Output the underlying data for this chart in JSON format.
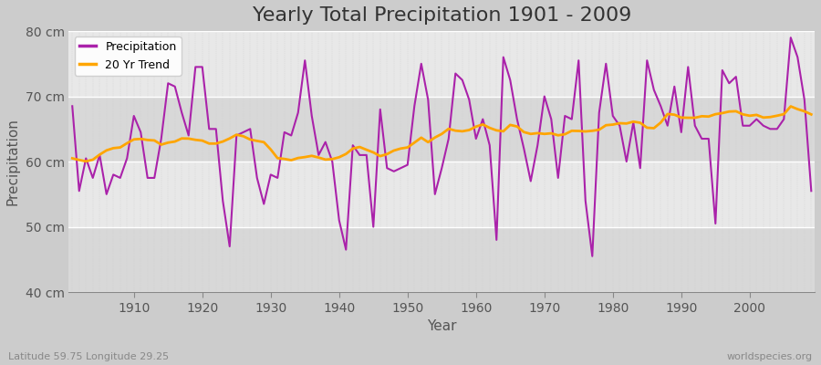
{
  "title": "Yearly Total Precipitation 1901 - 2009",
  "xlabel": "Year",
  "ylabel": "Precipitation",
  "subtitle": "Latitude 59.75 Longitude 29.25",
  "watermark": "worldspecies.org",
  "years": [
    1901,
    1902,
    1903,
    1904,
    1905,
    1906,
    1907,
    1908,
    1909,
    1910,
    1911,
    1912,
    1913,
    1914,
    1915,
    1916,
    1917,
    1918,
    1919,
    1920,
    1921,
    1922,
    1923,
    1924,
    1925,
    1926,
    1927,
    1928,
    1929,
    1930,
    1931,
    1932,
    1933,
    1934,
    1935,
    1936,
    1937,
    1938,
    1939,
    1940,
    1941,
    1942,
    1943,
    1944,
    1945,
    1946,
    1947,
    1948,
    1949,
    1950,
    1951,
    1952,
    1953,
    1954,
    1955,
    1956,
    1957,
    1958,
    1959,
    1960,
    1961,
    1962,
    1963,
    1964,
    1965,
    1966,
    1967,
    1968,
    1969,
    1970,
    1971,
    1972,
    1973,
    1974,
    1975,
    1976,
    1977,
    1978,
    1979,
    1980,
    1981,
    1982,
    1983,
    1984,
    1985,
    1986,
    1987,
    1988,
    1989,
    1990,
    1991,
    1992,
    1993,
    1994,
    1995,
    1996,
    1997,
    1998,
    1999,
    2000,
    2001,
    2002,
    2003,
    2004,
    2005,
    2006,
    2007,
    2008,
    2009
  ],
  "precipitation": [
    68.5,
    55.5,
    60.5,
    57.5,
    61.0,
    55.0,
    58.0,
    57.5,
    60.5,
    67.0,
    64.5,
    57.5,
    57.5,
    63.5,
    72.0,
    71.5,
    67.5,
    64.0,
    74.5,
    74.5,
    65.0,
    65.0,
    54.0,
    47.0,
    64.0,
    64.5,
    65.0,
    57.5,
    53.5,
    58.0,
    57.5,
    64.5,
    64.0,
    67.5,
    75.5,
    67.0,
    61.0,
    63.0,
    60.0,
    51.0,
    46.5,
    62.5,
    61.0,
    61.0,
    50.0,
    68.0,
    59.0,
    58.5,
    59.0,
    59.5,
    68.5,
    75.0,
    69.5,
    55.0,
    59.0,
    63.5,
    73.5,
    72.5,
    69.5,
    63.5,
    66.5,
    62.5,
    48.0,
    76.0,
    72.5,
    66.5,
    62.0,
    57.0,
    62.5,
    70.0,
    66.5,
    57.5,
    67.0,
    66.5,
    75.5,
    54.0,
    45.5,
    67.5,
    75.0,
    67.0,
    65.5,
    60.0,
    66.0,
    59.0,
    75.5,
    71.0,
    68.5,
    65.5,
    71.5,
    64.5,
    74.5,
    65.5,
    63.5,
    63.5,
    50.5,
    74.0,
    72.0,
    73.0,
    65.5,
    65.5,
    66.5,
    65.5,
    65.0,
    65.0,
    66.5,
    79.0,
    76.0,
    69.5,
    55.5
  ],
  "precip_color": "#AA22AA",
  "trend_color": "#FFA500",
  "fig_background": "#CCCCCC",
  "plot_background_light": "#E8E8E8",
  "plot_background_dark": "#D8D8D8",
  "grid_color_h": "#FFFFFF",
  "grid_color_v": "#BBBBBB",
  "ylim": [
    40,
    80
  ],
  "yticks": [
    40,
    50,
    60,
    70,
    80
  ],
  "ytick_labels": [
    "40 cm",
    "50 cm",
    "60 cm",
    "70 cm",
    "80 cm"
  ],
  "xticks": [
    1910,
    1920,
    1930,
    1940,
    1950,
    1960,
    1970,
    1980,
    1990,
    2000
  ],
  "legend_loc": "upper left",
  "title_fontsize": 16,
  "label_fontsize": 11,
  "tick_fontsize": 10,
  "line_width": 1.5,
  "trend_window": 20
}
